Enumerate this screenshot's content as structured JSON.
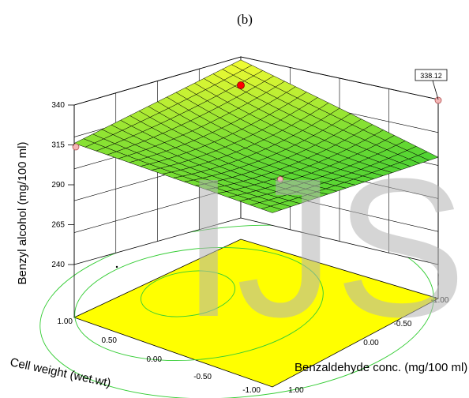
{
  "panel_label": "(b)",
  "watermark": "IJS",
  "colors": {
    "floor": "#ffff00",
    "surface_low": "#33cc33",
    "surface_high": "#ffff33",
    "mesh": "#000000",
    "contour": "#33cc33",
    "marker_red": "#ff0000",
    "marker_pink": "#f4b6b6"
  },
  "chart_data": {
    "type": "surface",
    "title": "",
    "zlabel": "Benzyl alcohol (mg/100 ml)",
    "xlabel": "Cell weight (wet.wt)",
    "ylabel": "Benzaldehyde conc. (mg/100 ml)",
    "x_ticks": [
      "1.00",
      "0.50",
      "0.00",
      "-0.50",
      "-1.00"
    ],
    "y_ticks": [
      "1.00",
      "0.00",
      "-0.50",
      "-1.00"
    ],
    "z_ticks": [
      "340",
      "315",
      "290",
      "265",
      "240"
    ],
    "xlim": [
      -1,
      1
    ],
    "ylim": [
      -1,
      1
    ],
    "zlim": [
      240,
      340
    ],
    "grid": true,
    "surface_corners": [
      {
        "x": 1,
        "y": 1,
        "z": 316
      },
      {
        "x": 1,
        "y": -1,
        "z": 338.12
      },
      {
        "x": -1,
        "y": -1,
        "z": 305
      },
      {
        "x": -1,
        "y": 1,
        "z": 311
      }
    ],
    "callout": {
      "label": "338.12",
      "x": 1,
      "y": -1,
      "z": 338.12
    },
    "design_points": [
      {
        "x": 1,
        "y": 1,
        "z": 316,
        "marker": "pink"
      },
      {
        "x": 1,
        "y": -1,
        "z": 338.12,
        "marker": "pink"
      },
      {
        "x": -1,
        "y": -1,
        "z": 340,
        "marker": "red"
      },
      {
        "x": -0.2,
        "y": 0.3,
        "z": 300,
        "marker": "pink"
      }
    ]
  }
}
